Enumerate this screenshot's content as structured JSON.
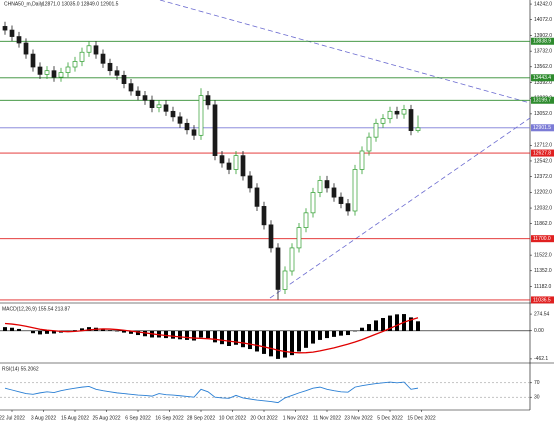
{
  "chart_data": [
    {
      "type": "candlestick",
      "title": "CHNA50_m,Daily",
      "subtitle": "12871.0 13035.0 12849.0 12901.5",
      "categories": [
        null,
        null,
        null,
        null,
        null,
        null,
        null,
        null,
        null,
        null,
        null,
        null,
        null,
        null,
        null,
        null,
        null,
        null,
        null,
        null,
        null,
        null,
        null,
        null,
        null,
        null,
        null,
        null,
        null,
        null,
        null,
        null,
        null,
        null,
        null,
        null,
        null,
        null,
        null,
        null,
        null,
        null,
        null,
        null,
        null,
        null,
        null,
        null,
        null,
        null,
        null,
        null,
        null,
        null,
        null,
        null,
        null,
        null,
        null,
        null
      ],
      "open": [
        14000,
        13960,
        13890,
        13820,
        13700,
        13560,
        13480,
        13520,
        13450,
        13500,
        13560,
        13620,
        13720,
        13790,
        13700,
        13600,
        13520,
        13470,
        13380,
        13300,
        13250,
        13200,
        13120,
        13150,
        13080,
        13020,
        12950,
        12880,
        12820,
        13250,
        13150,
        12600,
        12520,
        12450,
        12600,
        12380,
        12250,
        12050,
        11850,
        11600,
        11150,
        11350,
        11600,
        11820,
        11980,
        12200,
        12330,
        12250,
        12150,
        12080,
        12000,
        12450,
        12650,
        12800,
        12950,
        13000,
        13080,
        13050,
        13100,
        12871
      ],
      "high": [
        14050,
        14010,
        13940,
        13870,
        13750,
        13610,
        13570,
        13570,
        13550,
        13610,
        13670,
        13770,
        13840,
        13840,
        13750,
        13650,
        13570,
        13520,
        13430,
        13350,
        13300,
        13250,
        13200,
        13200,
        13130,
        13070,
        13000,
        12930,
        13330,
        13300,
        13200,
        12650,
        12570,
        12650,
        12650,
        12430,
        12300,
        12100,
        11900,
        11650,
        11400,
        11650,
        11870,
        12030,
        12250,
        12380,
        12380,
        12300,
        12200,
        12130,
        12500,
        12700,
        12850,
        13000,
        13050,
        13130,
        13130,
        13150,
        13150,
        13035
      ],
      "low": [
        13910,
        13840,
        13770,
        13650,
        13510,
        13430,
        13430,
        13400,
        13400,
        13450,
        13510,
        13570,
        13670,
        13650,
        13550,
        13470,
        13420,
        13330,
        13250,
        13200,
        13150,
        13070,
        13070,
        13030,
        12970,
        12900,
        12830,
        12770,
        12770,
        13100,
        12550,
        12470,
        12400,
        12400,
        12330,
        12200,
        12000,
        11800,
        11550,
        11040,
        11100,
        11300,
        11550,
        11770,
        11930,
        12150,
        12200,
        12100,
        12030,
        11950,
        11950,
        12400,
        12600,
        12750,
        12900,
        12950,
        13000,
        13000,
        12821,
        12849
      ],
      "close": [
        13960,
        13890,
        13820,
        13700,
        13560,
        13480,
        13520,
        13450,
        13500,
        13560,
        13620,
        13720,
        13790,
        13700,
        13600,
        13520,
        13470,
        13380,
        13300,
        13250,
        13200,
        13120,
        13150,
        13080,
        13020,
        12950,
        12880,
        12820,
        13250,
        13150,
        12600,
        12520,
        12450,
        12600,
        12380,
        12250,
        12050,
        11850,
        11600,
        11150,
        11350,
        11600,
        11820,
        11980,
        12200,
        12330,
        12250,
        12150,
        12080,
        12000,
        12450,
        12650,
        12800,
        12950,
        13000,
        13080,
        13050,
        13100,
        12871,
        12901.5
      ],
      "up_color": "#2f9e2f",
      "down_color": "#1a1a1a",
      "ylim": [
        11014,
        14286
      ],
      "yticks": [
        {
          "value": 14242,
          "label": "14242.0"
        },
        {
          "value": 14072,
          "label": "14072.0"
        },
        {
          "value": 13902,
          "label": "13902.0"
        },
        {
          "value": 13732,
          "label": "13732.0"
        },
        {
          "value": 13562,
          "label": "13562.0"
        },
        {
          "value": 13392,
          "label": "13392.0"
        },
        {
          "value": 13222,
          "label": "13222.0"
        },
        {
          "value": 13052,
          "label": "13052.0"
        },
        {
          "value": 12712,
          "label": "12712.0"
        },
        {
          "value": 12542,
          "label": "12542.0"
        },
        {
          "value": 12372,
          "label": "12372.0"
        },
        {
          "value": 12202,
          "label": "12202.0"
        },
        {
          "value": 12032,
          "label": "12032.0"
        },
        {
          "value": 11862,
          "label": "11862.0"
        },
        {
          "value": 11522,
          "label": "11522.0"
        },
        {
          "value": 11352,
          "label": "11352.0"
        },
        {
          "value": 11182,
          "label": "11182.0"
        }
      ],
      "levels": [
        {
          "value": 13838.9,
          "label": "13838.9",
          "color": "#2e8b2e"
        },
        {
          "value": 13443.4,
          "label": "13443.4",
          "color": "#2e8b2e"
        },
        {
          "value": 13199.7,
          "label": "13199.7",
          "color": "#2e8b2e"
        },
        {
          "value": 12901.5,
          "label": "12901.5",
          "color": "#7b7bd6"
        },
        {
          "value": 12627.8,
          "label": "12627.8",
          "color": "#e02020"
        },
        {
          "value": 11700.0,
          "label": "11700.0",
          "color": "#e02020"
        },
        {
          "value": 11036.5,
          "label": "11036.5",
          "color": "#e02020"
        }
      ],
      "date_labels": [
        "22 Jul 2022",
        "3 Aug 2022",
        "15 Aug 2022",
        "25 Aug 2022",
        "6 Sep 2022",
        "16 Sep 2022",
        "28 Sep 2022",
        "10 Oct 2022",
        "20 Oct 2022",
        "1 Nov 2022",
        "11 Nov 2022",
        "23 Nov 2022",
        "5 Dec 2022",
        "15 Dec 2022"
      ]
    },
    {
      "type": "macd",
      "title": "MACD(12,26,9) 155.54 213.87",
      "histogram": [
        60,
        50,
        30,
        0,
        -40,
        -60,
        -50,
        -45,
        -30,
        -10,
        10,
        40,
        60,
        50,
        30,
        10,
        -10,
        -30,
        -50,
        -70,
        -90,
        -110,
        -110,
        -120,
        -130,
        -140,
        -150,
        -160,
        -110,
        -120,
        -190,
        -220,
        -250,
        -230,
        -270,
        -300,
        -340,
        -380,
        -420,
        -462.1,
        -440,
        -400,
        -340,
        -280,
        -210,
        -150,
        -120,
        -100,
        -80,
        -70,
        -10,
        50,
        110,
        170,
        210,
        250,
        270,
        274.54,
        220,
        155.54
      ],
      "signal": [
        120,
        110,
        95,
        75,
        50,
        25,
        10,
        0,
        -10,
        -15,
        -10,
        0,
        15,
        25,
        30,
        28,
        20,
        8,
        -5,
        -20,
        -35,
        -50,
        -65,
        -78,
        -90,
        -100,
        -110,
        -120,
        -125,
        -130,
        -140,
        -155,
        -170,
        -185,
        -200,
        -220,
        -240,
        -265,
        -290,
        -320,
        -340,
        -355,
        -362,
        -360,
        -350,
        -330,
        -305,
        -280,
        -250,
        -220,
        -185,
        -145,
        -100,
        -55,
        -10,
        40,
        90,
        140,
        180,
        213.87
      ],
      "histogram_color": "#000000",
      "signal_color": "#e00000",
      "ylim": [
        -480,
        292
      ],
      "yticks": [
        274.54,
        {
          "value": 0,
          "label": "0.00"
        },
        -462.1
      ]
    },
    {
      "type": "line",
      "title": "RSI(14) 55.2062",
      "values": [
        55,
        50,
        45,
        40,
        38,
        42,
        45,
        43,
        48,
        52,
        55,
        58,
        60,
        52,
        48,
        45,
        42,
        40,
        38,
        36,
        35,
        33,
        40,
        37,
        36,
        34,
        32,
        30,
        52,
        45,
        30,
        28,
        27,
        35,
        28,
        25,
        22,
        20,
        18,
        15,
        28,
        35,
        42,
        48,
        55,
        58,
        52,
        48,
        45,
        44,
        58,
        62,
        65,
        68,
        70,
        72,
        70,
        72,
        52,
        55.2062
      ],
      "color": "#2a7fd4",
      "ylim": [
        0,
        100
      ],
      "yticks": [
        70,
        30
      ]
    }
  ]
}
